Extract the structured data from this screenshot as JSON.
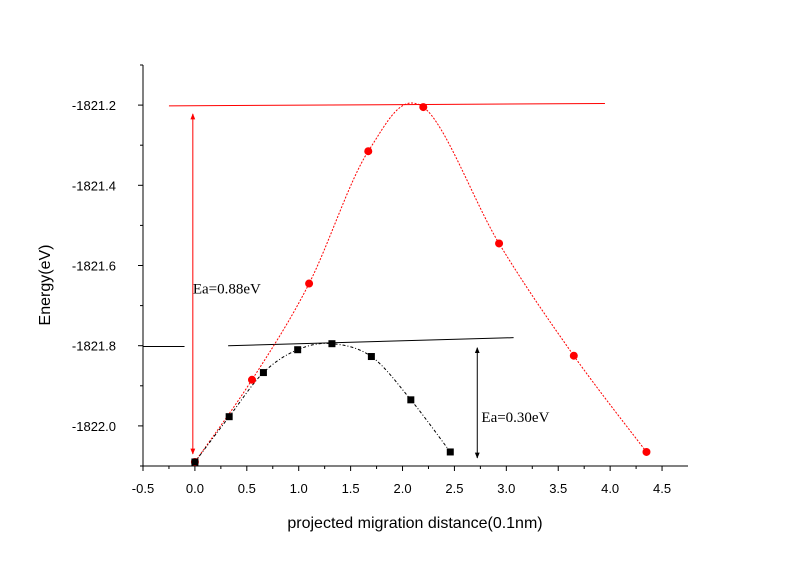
{
  "chart_data": {
    "type": "scatter",
    "xlabel": "projected migration distance(0.1nm)",
    "ylabel": "Energy(eV)",
    "xlim": [
      -0.5,
      4.75
    ],
    "ylim": [
      -1822.1,
      -1821.1
    ],
    "xticks": [
      -0.5,
      0.0,
      0.5,
      1.0,
      1.5,
      2.0,
      2.5,
      3.0,
      3.5,
      4.0,
      4.5
    ],
    "xtick_labels": [
      "-0.5",
      "0.0",
      "0.5",
      "1.0",
      "1.5",
      "2.0",
      "2.5",
      "3.0",
      "3.5",
      "4.0",
      "4.5"
    ],
    "yticks": [
      -1822.0,
      -1821.8,
      -1821.6,
      -1821.4,
      -1821.2
    ],
    "ytick_labels": [
      "-1822.0",
      "-1821.8",
      "-1821.6",
      "-1821.4",
      "-1821.2"
    ],
    "grid": false,
    "series": [
      {
        "marker": "circle",
        "color": "#ff0000",
        "x": [
          0.0,
          0.55,
          1.1,
          1.67,
          2.2,
          2.93,
          3.65,
          4.35
        ],
        "y": [
          -1822.09,
          -1821.885,
          -1821.645,
          -1821.315,
          -1821.205,
          -1821.545,
          -1821.825,
          -1822.065
        ]
      },
      {
        "marker": "square",
        "color": "#000000",
        "x": [
          0.0,
          0.33,
          0.66,
          0.99,
          1.32,
          1.7,
          2.08,
          2.46
        ],
        "y": [
          -1822.09,
          -1821.977,
          -1821.867,
          -1821.81,
          -1821.795,
          -1821.827,
          -1821.935,
          -1822.065
        ]
      }
    ],
    "reference_lines": [
      {
        "color": "#ff0000",
        "x": [
          -0.25,
          3.95
        ],
        "y": [
          -1821.202,
          -1821.196
        ]
      },
      {
        "color": "#000000",
        "x": [
          -0.5,
          -0.1
        ],
        "y": [
          -1821.802,
          -1821.802
        ]
      },
      {
        "color": "#000000",
        "x": [
          0.32,
          3.07
        ],
        "y": [
          -1821.8,
          -1821.78
        ]
      }
    ],
    "arrows": [
      {
        "color": "#ff0000",
        "x": -0.02,
        "y": [
          -1821.222,
          -1822.07
        ]
      },
      {
        "color": "#000000",
        "x": 2.72,
        "y": [
          -1821.805,
          -1822.08
        ]
      }
    ],
    "annotations": [
      {
        "text": "Ea=0.88eV",
        "x": -0.02,
        "y": -1821.67
      },
      {
        "text": "Ea=0.30eV",
        "x": 2.76,
        "y": -1821.99
      }
    ]
  }
}
